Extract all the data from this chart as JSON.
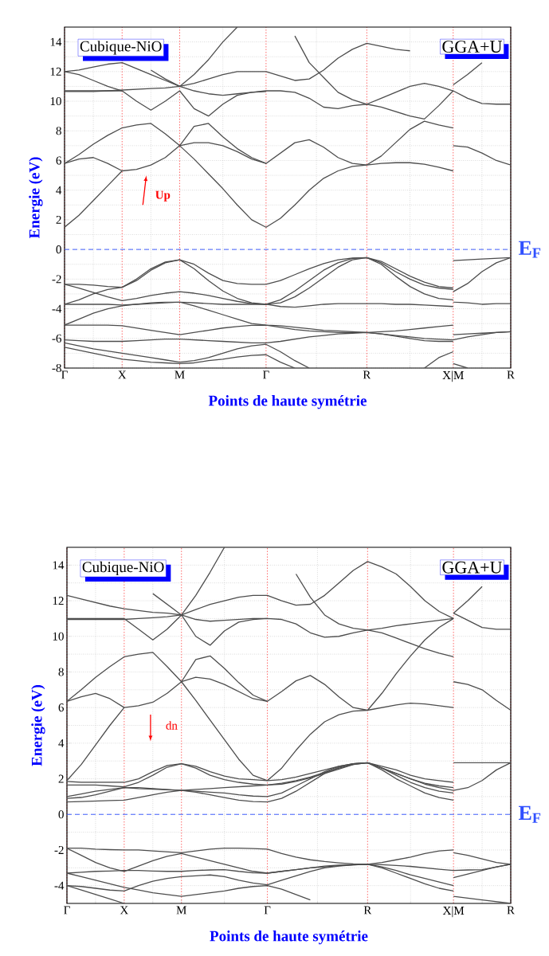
{
  "chart_data": [
    {
      "type": "line",
      "xlabel": "Points de haute symétrie",
      "ylabel": "Energie (eV)",
      "annotations": [
        "Cubique-NiO",
        "GGA+U",
        "Up"
      ],
      "grid": true,
      "ylim": [
        -8,
        15
      ],
      "categories": [
        "Γ",
        null,
        null,
        null,
        "X",
        null,
        null,
        null,
        "M",
        null,
        null,
        null,
        null,
        null,
        "Γ",
        null,
        null,
        null,
        null,
        null,
        null,
        "R",
        null,
        null,
        null,
        null,
        null,
        "X|M",
        null,
        null,
        null,
        "R"
      ],
      "yticks": [
        -8,
        -6,
        -4,
        -2,
        0,
        2,
        4,
        6,
        8,
        10,
        12,
        14
      ],
      "ref_lines": [
        {
          "axis": "y",
          "value": 0,
          "label": "E$_{F}$",
          "color": "#3050ff",
          "line_style": "dashed"
        }
      ],
      "series": [
        {
          "color": "#4d4d4d",
          "values": [
            1.5,
            2.3,
            3.3,
            4.3,
            5.3,
            5.4,
            5.7,
            6.2,
            7.0,
            6.1,
            5.1,
            4.1,
            3.0,
            2.0,
            1.5,
            2.1,
            3.0,
            4.0,
            4.8,
            5.3,
            5.6,
            5.7,
            5.8,
            5.85,
            5.85,
            5.75,
            5.55,
            5.3,
            null,
            null,
            null,
            null
          ]
        },
        {
          "color": "#4d4d4d",
          "values": [
            5.8,
            6.1,
            6.2,
            5.8,
            5.3,
            null,
            null,
            null,
            null,
            null,
            null,
            null,
            null,
            null,
            null,
            null,
            null,
            null,
            null,
            null,
            null,
            null,
            null,
            null,
            null,
            null,
            null,
            null,
            null,
            null,
            null,
            null
          ]
        },
        {
          "color": "#4d4d4d",
          "values": [
            5.8,
            6.4,
            7.1,
            7.7,
            8.2,
            8.4,
            8.5,
            7.8,
            7.0,
            7.2,
            7.2,
            7.0,
            6.6,
            6.1,
            5.8,
            6.5,
            7.2,
            7.4,
            6.9,
            6.2,
            5.8,
            5.7,
            6.3,
            7.2,
            8.1,
            8.65,
            8.4,
            8.2,
            null,
            null,
            null,
            null
          ]
        },
        {
          "color": "#4d4d4d",
          "values": [
            null,
            null,
            null,
            null,
            null,
            null,
            null,
            null,
            7.0,
            8.3,
            8.5,
            7.6,
            6.8,
            6.2,
            5.8,
            null,
            null,
            null,
            null,
            null,
            null,
            null,
            null,
            null,
            null,
            null,
            null,
            null,
            null,
            null,
            null,
            null
          ]
        },
        {
          "color": "#4d4d4d",
          "values": [
            10.7,
            10.7,
            10.7,
            10.7,
            10.7,
            10.0,
            9.4,
            10.0,
            10.7,
            9.5,
            9.0,
            9.8,
            10.4,
            10.6,
            10.7,
            10.7,
            10.6,
            10.2,
            9.6,
            9.5,
            9.7,
            9.8,
            9.6,
            9.3,
            9.0,
            8.8,
            9.7,
            10.7,
            10.2,
            9.85,
            9.8,
            9.8
          ]
        },
        {
          "color": "#4d4d4d",
          "values": [
            10.65,
            10.65,
            10.65,
            10.7,
            10.75,
            10.8,
            10.85,
            10.9,
            11.0,
            10.7,
            10.5,
            10.4,
            10.5,
            10.6,
            10.65,
            null,
            null,
            null,
            null,
            null,
            null,
            null,
            null,
            null,
            null,
            null,
            null,
            null,
            null,
            null,
            null,
            null
          ]
        },
        {
          "color": "#4d4d4d",
          "values": [
            12.0,
            11.8,
            11.4,
            11.0,
            10.7,
            null,
            null,
            null,
            null,
            null,
            null,
            null,
            null,
            null,
            null,
            null,
            null,
            null,
            null,
            null,
            null,
            null,
            null,
            null,
            null,
            null,
            null,
            null,
            null,
            null,
            null,
            null
          ]
        },
        {
          "color": "#4d4d4d",
          "values": [
            12.0,
            12.1,
            12.3,
            12.5,
            12.6,
            12.2,
            11.8,
            11.4,
            11.0,
            11.2,
            11.5,
            11.8,
            12.0,
            12.0,
            12.0,
            11.7,
            11.4,
            11.5,
            12.1,
            12.9,
            13.5,
            13.9,
            13.7,
            13.5,
            13.4,
            null,
            null,
            null,
            null,
            null,
            null,
            null
          ]
        },
        {
          "color": "#4d4d4d",
          "values": [
            null,
            null,
            null,
            null,
            null,
            null,
            null,
            null,
            11.0,
            11.8,
            12.8,
            14.0,
            15.0,
            null,
            null,
            null,
            null,
            null,
            null,
            null,
            null,
            null,
            null,
            null,
            null,
            null,
            null,
            null,
            null,
            null,
            null,
            null
          ]
        },
        {
          "color": "#4d4d4d",
          "values": [
            null,
            null,
            null,
            null,
            null,
            null,
            null,
            null,
            null,
            null,
            null,
            null,
            null,
            null,
            null,
            null,
            14.4,
            12.6,
            11.6,
            10.6,
            10.1,
            9.8,
            10.2,
            10.6,
            11.0,
            11.2,
            11.0,
            10.7,
            null,
            null,
            null,
            null
          ]
        },
        {
          "color": "#4d4d4d",
          "values": [
            null,
            null,
            null,
            null,
            null,
            null,
            12.1,
            11.5,
            11.0,
            null,
            null,
            null,
            null,
            null,
            null,
            null,
            null,
            null,
            null,
            null,
            null,
            null,
            null,
            null,
            null,
            null,
            null,
            null,
            null,
            null,
            null,
            null
          ]
        },
        {
          "color": "#4d4d4d",
          "values": [
            null,
            null,
            null,
            null,
            null,
            null,
            null,
            null,
            null,
            null,
            null,
            null,
            null,
            null,
            null,
            null,
            null,
            null,
            null,
            null,
            null,
            null,
            null,
            null,
            null,
            null,
            null,
            7.0,
            6.9,
            6.5,
            6.0,
            5.7
          ]
        },
        {
          "color": "#4d4d4d",
          "values": [
            null,
            null,
            null,
            null,
            null,
            null,
            null,
            null,
            null,
            null,
            null,
            null,
            null,
            null,
            null,
            null,
            null,
            null,
            null,
            null,
            null,
            null,
            null,
            null,
            null,
            null,
            null,
            11.1,
            11.8,
            12.6,
            null,
            null
          ]
        },
        {
          "color": "#4d4d4d",
          "values": [
            -2.35,
            -2.35,
            -2.4,
            -2.5,
            -2.55,
            -2.0,
            -1.3,
            -0.85,
            -0.7,
            -1.0,
            -1.6,
            -2.1,
            -2.3,
            -2.35,
            -2.35,
            -2.1,
            -1.7,
            -1.3,
            -0.95,
            -0.7,
            -0.58,
            -0.55,
            -0.8,
            -1.3,
            -1.8,
            -2.2,
            -2.5,
            -2.6,
            null,
            null,
            null,
            null
          ]
        },
        {
          "color": "#4d4d4d",
          "values": [
            null,
            null,
            null,
            null,
            null,
            null,
            null,
            null,
            null,
            null,
            null,
            null,
            null,
            null,
            null,
            null,
            null,
            null,
            null,
            null,
            null,
            null,
            null,
            null,
            null,
            null,
            null,
            -0.75,
            -0.7,
            -0.65,
            -0.6,
            -0.55
          ]
        },
        {
          "color": "#4d4d4d",
          "values": [
            -3.7,
            -3.4,
            -3.0,
            -2.7,
            -2.55,
            -2.1,
            -1.4,
            -0.9,
            -0.7,
            -1.3,
            -2.1,
            -2.8,
            -3.3,
            -3.6,
            -3.7,
            -3.4,
            -2.8,
            -2.1,
            -1.4,
            -0.9,
            -0.6,
            -0.55,
            -0.9,
            -1.5,
            -2.0,
            -2.4,
            -2.6,
            -2.7,
            null,
            null,
            null,
            null
          ]
        },
        {
          "color": "#4d4d4d",
          "values": [
            null,
            null,
            null,
            null,
            null,
            null,
            null,
            null,
            null,
            null,
            null,
            null,
            null,
            null,
            null,
            null,
            null,
            null,
            null,
            null,
            null,
            null,
            null,
            null,
            null,
            null,
            null,
            -2.85,
            -2.3,
            -1.5,
            -0.9,
            -0.55
          ]
        },
        {
          "color": "#4d4d4d",
          "values": [
            -3.7,
            -3.7,
            -3.7,
            -3.7,
            -3.75,
            -3.7,
            -3.65,
            -3.6,
            -3.55,
            -3.6,
            -3.65,
            -3.7,
            -3.7,
            -3.7,
            -3.7,
            -3.85,
            -3.9,
            -3.8,
            -3.7,
            -3.65,
            -3.65,
            -3.65,
            -3.65,
            -3.7,
            -3.7,
            -3.75,
            -3.8,
            -3.85,
            null,
            null,
            null,
            null
          ]
        },
        {
          "color": "#4d4d4d",
          "values": [
            null,
            null,
            null,
            null,
            null,
            null,
            null,
            null,
            null,
            null,
            null,
            null,
            null,
            null,
            null,
            null,
            null,
            null,
            null,
            null,
            null,
            null,
            null,
            null,
            null,
            null,
            null,
            -3.55,
            -3.6,
            -3.7,
            -3.65,
            -3.65
          ]
        },
        {
          "color": "#4d4d4d",
          "values": [
            -2.35,
            -2.6,
            -2.9,
            -3.2,
            -3.45,
            -3.3,
            -3.1,
            -2.95,
            -2.85,
            -2.95,
            -3.1,
            -3.3,
            -3.5,
            -3.65,
            -3.7,
            -3.6,
            -3.2,
            -2.6,
            -1.9,
            -1.2,
            -0.7,
            -0.55,
            -1.0,
            -1.8,
            -2.5,
            -3.0,
            -3.3,
            -3.4,
            null,
            null,
            null,
            null
          ]
        },
        {
          "color": "#4d4d4d",
          "values": [
            -5.1,
            -4.7,
            -4.3,
            -4.0,
            -3.8,
            -3.7,
            -3.6,
            -3.55,
            -3.55,
            -3.8,
            -4.1,
            -4.4,
            -4.7,
            -5.0,
            -5.1,
            -5.15,
            -5.25,
            -5.35,
            -5.45,
            -5.5,
            -5.55,
            -5.6,
            -5.55,
            -5.5,
            -5.4,
            -5.3,
            -5.2,
            -5.1,
            null,
            null,
            null,
            null
          ]
        },
        {
          "color": "#4d4d4d",
          "values": [
            null,
            null,
            null,
            null,
            null,
            null,
            null,
            null,
            null,
            null,
            null,
            null,
            null,
            null,
            null,
            null,
            null,
            null,
            null,
            null,
            null,
            null,
            null,
            null,
            null,
            null,
            null,
            -5.75,
            -5.7,
            -5.65,
            -5.6,
            -5.55
          ]
        },
        {
          "color": "#4d4d4d",
          "values": [
            -5.1,
            -5.1,
            -5.1,
            -5.1,
            -5.15,
            -5.3,
            -5.45,
            -5.6,
            -5.75,
            -5.6,
            -5.45,
            -5.3,
            -5.2,
            -5.12,
            -5.1,
            -5.25,
            -5.4,
            -5.5,
            -5.55,
            -5.6,
            -5.6,
            -5.6,
            -5.7,
            -5.8,
            -5.9,
            -6.0,
            -6.05,
            -6.1,
            -5.9,
            -5.75,
            -5.6,
            -5.55
          ]
        },
        {
          "color": "#4d4d4d",
          "values": [
            -6.1,
            -6.15,
            -6.2,
            -6.2,
            -6.2,
            -6.15,
            -6.1,
            -6.05,
            -6.05,
            -6.1,
            -6.15,
            -6.2,
            -6.25,
            -6.3,
            -6.3,
            -6.2,
            -6.05,
            -5.9,
            -5.8,
            -5.7,
            -5.65,
            -5.6,
            -5.7,
            -5.85,
            -6.0,
            -6.15,
            -6.2,
            -6.2,
            null,
            null,
            null,
            null
          ]
        },
        {
          "color": "#4d4d4d",
          "values": [
            -6.3,
            -6.5,
            -6.7,
            -6.85,
            -7.0,
            -7.15,
            -7.3,
            -7.45,
            -7.6,
            -7.5,
            -7.3,
            -7.0,
            -6.7,
            -6.5,
            -6.4,
            -6.9,
            -7.5,
            -8.0,
            null,
            null,
            null,
            null,
            null,
            null,
            null,
            null,
            null,
            null,
            null,
            null,
            null,
            null
          ]
        },
        {
          "color": "#4d4d4d",
          "values": [
            -6.6,
            -6.8,
            -7.0,
            -7.2,
            -7.4,
            -7.5,
            -7.6,
            -7.65,
            -7.7,
            -7.65,
            -7.5,
            -7.4,
            -7.25,
            -7.15,
            -7.1,
            -7.6,
            -8.0,
            null,
            null,
            null,
            null,
            null,
            null,
            null,
            null,
            null,
            null,
            null,
            null,
            null,
            null,
            null
          ]
        },
        {
          "color": "#4d4d4d",
          "values": [
            null,
            null,
            null,
            null,
            null,
            null,
            null,
            null,
            null,
            null,
            null,
            null,
            null,
            null,
            null,
            null,
            null,
            null,
            null,
            null,
            null,
            null,
            null,
            null,
            null,
            -8.0,
            -7.3,
            -6.9,
            null,
            null,
            null,
            null
          ]
        },
        {
          "color": "#4d4d4d",
          "values": [
            null,
            null,
            null,
            null,
            null,
            null,
            null,
            null,
            null,
            null,
            null,
            null,
            null,
            null,
            null,
            null,
            null,
            null,
            null,
            null,
            null,
            null,
            null,
            null,
            null,
            null,
            null,
            -7.7,
            -8.0,
            null,
            null,
            null
          ]
        }
      ]
    },
    {
      "type": "line",
      "xlabel": "Points de haute symétrie",
      "ylabel": "Energie (eV)",
      "annotations": [
        "Cubique-NiO",
        "GGA+U",
        "dn"
      ],
      "grid": true,
      "ylim": [
        -5,
        15
      ],
      "categories": [
        "Γ",
        null,
        null,
        null,
        "X",
        null,
        null,
        null,
        "M",
        null,
        null,
        null,
        null,
        null,
        "Γ",
        null,
        null,
        null,
        null,
        null,
        null,
        "R",
        null,
        null,
        null,
        null,
        null,
        "X|M",
        null,
        null,
        null,
        "R"
      ],
      "yticks": [
        -4,
        -2,
        0,
        2,
        4,
        6,
        8,
        10,
        12,
        14
      ],
      "ref_lines": [
        {
          "axis": "y",
          "value": 0,
          "label": "E$_{F}$",
          "color": "#3050ff",
          "line_style": "dashed"
        }
      ],
      "series": [
        {
          "color": "#4d4d4d",
          "values": [
            1.9,
            2.8,
            3.9,
            5.0,
            6.0,
            6.1,
            6.3,
            6.8,
            7.45,
            6.4,
            5.3,
            4.2,
            3.1,
            2.2,
            1.9,
            2.6,
            3.6,
            4.5,
            5.2,
            5.6,
            5.8,
            5.85,
            6.0,
            6.15,
            6.25,
            6.2,
            6.1,
            6.0,
            null,
            null,
            null,
            null
          ]
        },
        {
          "color": "#4d4d4d",
          "values": [
            6.35,
            6.6,
            6.8,
            6.5,
            6.0,
            null,
            null,
            null,
            null,
            null,
            null,
            null,
            null,
            null,
            null,
            null,
            null,
            null,
            null,
            null,
            null,
            null,
            null,
            null,
            null,
            null,
            null,
            null,
            null,
            null,
            null,
            null
          ]
        },
        {
          "color": "#4d4d4d",
          "values": [
            6.35,
            7.0,
            7.7,
            8.3,
            8.85,
            9.0,
            9.1,
            8.3,
            7.45,
            7.7,
            7.6,
            7.3,
            6.9,
            6.5,
            6.35,
            6.9,
            7.5,
            7.8,
            7.3,
            6.6,
            6.0,
            5.85,
            6.8,
            7.9,
            8.9,
            9.8,
            10.5,
            11.0,
            null,
            null,
            null,
            null
          ]
        },
        {
          "color": "#4d4d4d",
          "values": [
            null,
            null,
            null,
            null,
            null,
            null,
            null,
            null,
            7.45,
            8.7,
            8.9,
            8.2,
            7.4,
            6.7,
            6.35,
            null,
            null,
            null,
            null,
            null,
            null,
            null,
            null,
            null,
            null,
            null,
            null,
            null,
            null,
            null,
            null,
            null
          ]
        },
        {
          "color": "#4d4d4d",
          "values": [
            11.0,
            11.0,
            11.0,
            11.0,
            11.0,
            10.4,
            9.8,
            10.4,
            11.2,
            10.0,
            9.5,
            10.3,
            10.8,
            10.95,
            11.0,
            10.95,
            10.7,
            10.2,
            9.95,
            10.0,
            10.2,
            10.35,
            10.2,
            9.9,
            9.6,
            9.3,
            9.05,
            8.85,
            null,
            null,
            null,
            null
          ]
        },
        {
          "color": "#4d4d4d",
          "values": [
            12.3,
            12.1,
            11.9,
            11.7,
            11.55,
            11.45,
            11.35,
            11.3,
            11.2,
            11.5,
            11.8,
            12.0,
            12.2,
            12.3,
            12.3,
            12.0,
            11.75,
            11.8,
            12.3,
            13.0,
            13.7,
            14.2,
            13.9,
            13.5,
            12.8,
            12.0,
            11.4,
            11.0,
            null,
            null,
            null,
            null
          ]
        },
        {
          "color": "#4d4d4d",
          "values": [
            10.95,
            10.95,
            10.95,
            10.95,
            10.95,
            11.0,
            11.05,
            11.1,
            11.2,
            10.95,
            10.85,
            10.9,
            10.95,
            11.0,
            11.0,
            null,
            null,
            null,
            null,
            null,
            null,
            null,
            null,
            null,
            null,
            null,
            null,
            null,
            null,
            null,
            null,
            null
          ]
        },
        {
          "color": "#4d4d4d",
          "values": [
            null,
            null,
            null,
            null,
            null,
            null,
            null,
            null,
            null,
            null,
            null,
            null,
            null,
            null,
            null,
            null,
            13.5,
            12.2,
            11.2,
            10.7,
            10.45,
            10.35,
            10.45,
            10.6,
            10.7,
            10.8,
            10.9,
            11.0,
            null,
            null,
            null,
            null
          ]
        },
        {
          "color": "#4d4d4d",
          "values": [
            null,
            null,
            null,
            null,
            null,
            null,
            null,
            null,
            11.2,
            12.3,
            13.6,
            15.0,
            null,
            null,
            null,
            null,
            null,
            null,
            null,
            null,
            null,
            null,
            null,
            null,
            null,
            null,
            null,
            null,
            null,
            null,
            null,
            null
          ]
        },
        {
          "color": "#4d4d4d",
          "values": [
            null,
            null,
            null,
            null,
            null,
            null,
            12.4,
            11.8,
            11.2,
            null,
            null,
            null,
            null,
            null,
            null,
            null,
            null,
            null,
            null,
            null,
            null,
            null,
            null,
            null,
            null,
            null,
            null,
            null,
            null,
            null,
            null,
            null
          ]
        },
        {
          "color": "#4d4d4d",
          "values": [
            null,
            null,
            null,
            null,
            null,
            null,
            null,
            null,
            null,
            null,
            null,
            null,
            null,
            null,
            null,
            null,
            null,
            null,
            null,
            null,
            null,
            null,
            null,
            null,
            null,
            null,
            null,
            7.45,
            7.3,
            7.0,
            6.4,
            5.85
          ]
        },
        {
          "color": "#4d4d4d",
          "values": [
            null,
            null,
            null,
            null,
            null,
            null,
            null,
            null,
            null,
            null,
            null,
            null,
            null,
            null,
            null,
            null,
            null,
            null,
            null,
            null,
            null,
            null,
            null,
            null,
            null,
            null,
            null,
            11.3,
            10.9,
            10.5,
            10.4,
            10.4
          ]
        },
        {
          "color": "#4d4d4d",
          "values": [
            null,
            null,
            null,
            null,
            null,
            null,
            null,
            null,
            null,
            null,
            null,
            null,
            null,
            null,
            null,
            null,
            null,
            null,
            null,
            null,
            null,
            null,
            null,
            null,
            null,
            null,
            null,
            11.3,
            12.0,
            12.8,
            null,
            null
          ]
        },
        {
          "color": "#4d4d4d",
          "values": [
            1.85,
            1.8,
            1.8,
            1.8,
            1.8,
            2.0,
            2.4,
            2.75,
            2.85,
            2.7,
            2.4,
            2.15,
            2.0,
            1.95,
            1.9,
            1.95,
            2.1,
            2.3,
            2.5,
            2.7,
            2.85,
            2.9,
            2.7,
            2.5,
            2.2,
            2.0,
            1.9,
            1.8,
            null,
            null,
            null,
            null
          ]
        },
        {
          "color": "#4d4d4d",
          "values": [
            1.65,
            1.65,
            1.65,
            1.6,
            1.55,
            1.8,
            2.2,
            2.65,
            2.85,
            2.6,
            2.2,
            1.95,
            1.8,
            1.7,
            1.65,
            1.7,
            1.85,
            2.05,
            2.3,
            2.55,
            2.8,
            2.9,
            2.6,
            2.3,
            2.0,
            1.75,
            1.6,
            1.5,
            null,
            null,
            null,
            null
          ]
        },
        {
          "color": "#4d4d4d",
          "values": [
            1.0,
            1.15,
            1.3,
            1.4,
            1.5,
            1.5,
            1.45,
            1.4,
            1.35,
            1.4,
            1.45,
            1.5,
            1.55,
            1.6,
            1.65,
            1.75,
            1.9,
            2.1,
            2.35,
            2.6,
            2.8,
            2.9,
            2.6,
            2.3,
            2.0,
            1.7,
            1.5,
            1.35,
            1.5,
            1.9,
            2.5,
            2.9
          ]
        },
        {
          "color": "#4d4d4d",
          "values": [
            0.7,
            0.72,
            0.75,
            0.78,
            0.8,
            0.95,
            1.1,
            1.25,
            1.35,
            1.25,
            1.1,
            0.95,
            0.8,
            0.72,
            0.7,
            0.9,
            1.3,
            1.8,
            2.3,
            2.65,
            2.85,
            2.9,
            2.5,
            2.0,
            1.6,
            1.2,
            0.95,
            0.8,
            null,
            null,
            null,
            null
          ]
        },
        {
          "color": "#4d4d4d",
          "values": [
            0.9,
            0.95,
            1.1,
            1.3,
            1.5,
            1.45,
            1.42,
            1.38,
            1.35,
            1.3,
            1.25,
            1.2,
            1.1,
            1.03,
            1.0,
            1.2,
            1.6,
            2.0,
            2.4,
            2.7,
            2.85,
            2.9,
            2.6,
            2.2,
            1.8,
            1.5,
            1.3,
            1.2,
            null,
            null,
            null,
            null
          ]
        },
        {
          "color": "#4d4d4d",
          "values": [
            null,
            null,
            null,
            null,
            null,
            null,
            null,
            null,
            null,
            null,
            null,
            null,
            null,
            null,
            null,
            null,
            null,
            null,
            null,
            null,
            null,
            null,
            null,
            null,
            null,
            null,
            null,
            2.9,
            2.9,
            2.9,
            2.9,
            2.9
          ]
        },
        {
          "color": "#4d4d4d",
          "values": [
            -1.9,
            -1.9,
            -1.95,
            -1.98,
            -2.0,
            -2.0,
            -2.05,
            -2.1,
            -2.15,
            -2.05,
            -1.95,
            -1.9,
            -1.9,
            -1.92,
            -1.95,
            -2.2,
            -2.4,
            -2.55,
            -2.65,
            -2.72,
            -2.78,
            -2.8,
            -2.7,
            -2.55,
            -2.4,
            -2.2,
            -2.05,
            -2.0,
            null,
            null,
            null,
            null
          ]
        },
        {
          "color": "#4d4d4d",
          "values": [
            null,
            null,
            null,
            null,
            null,
            null,
            null,
            null,
            null,
            null,
            null,
            null,
            null,
            null,
            null,
            null,
            null,
            null,
            null,
            null,
            null,
            null,
            null,
            null,
            null,
            null,
            null,
            -2.15,
            -2.3,
            -2.5,
            -2.7,
            -2.8
          ]
        },
        {
          "color": "#4d4d4d",
          "values": [
            -3.3,
            -3.25,
            -3.2,
            -3.18,
            -3.15,
            -3.15,
            -3.18,
            -3.2,
            -3.2,
            -3.15,
            -3.12,
            -3.1,
            -3.2,
            -3.28,
            -3.3,
            -3.2,
            -3.1,
            -3.0,
            -2.95,
            -2.88,
            -2.83,
            -2.8,
            -2.82,
            -2.87,
            -2.92,
            -3.0,
            -3.08,
            -3.15,
            -3.12,
            -3.1,
            -2.95,
            -2.8
          ]
        },
        {
          "color": "#4d4d4d",
          "values": [
            -4.0,
            -4.05,
            -4.15,
            -4.25,
            -4.3,
            -4.0,
            -3.75,
            -3.6,
            -3.5,
            -3.45,
            -3.4,
            -3.5,
            -3.7,
            -3.85,
            -3.95,
            -3.7,
            -3.45,
            -3.2,
            -3.0,
            -2.9,
            -2.83,
            -2.8,
            -3.0,
            -3.3,
            -3.6,
            -3.9,
            -4.15,
            -4.3,
            null,
            null,
            null,
            null
          ]
        },
        {
          "color": "#4d4d4d",
          "values": [
            null,
            null,
            null,
            null,
            null,
            null,
            null,
            null,
            null,
            null,
            null,
            null,
            null,
            null,
            null,
            null,
            null,
            null,
            null,
            null,
            null,
            null,
            null,
            null,
            null,
            null,
            null,
            -3.55,
            -3.35,
            -3.15,
            -2.95,
            -2.8
          ]
        },
        {
          "color": "#4d4d4d",
          "values": [
            -1.9,
            -2.3,
            -2.7,
            -3.0,
            -3.2,
            -2.9,
            -2.6,
            -2.35,
            -2.2,
            -2.4,
            -2.6,
            -2.8,
            -3.0,
            -3.2,
            -3.3,
            -3.2,
            -3.1,
            -3.0,
            -2.9,
            -2.85,
            -2.82,
            -2.8,
            -2.95,
            -3.15,
            -3.4,
            -3.6,
            -3.8,
            -4.0,
            null,
            null,
            null,
            null
          ]
        },
        {
          "color": "#4d4d4d",
          "values": [
            -3.3,
            -3.5,
            -3.7,
            -3.9,
            -4.1,
            -4.25,
            -4.4,
            -4.5,
            -4.6,
            -4.5,
            -4.4,
            -4.3,
            -4.15,
            -4.05,
            -4.0,
            -4.2,
            -4.5,
            -4.8,
            null,
            null,
            null,
            null,
            null,
            null,
            null,
            null,
            null,
            null,
            null,
            null,
            null,
            null
          ]
        },
        {
          "color": "#4d4d4d",
          "values": [
            -4.0,
            -4.25,
            -4.5,
            -4.75,
            -5.0,
            null,
            null,
            null,
            null,
            null,
            null,
            null,
            null,
            null,
            null,
            null,
            null,
            null,
            null,
            null,
            null,
            null,
            null,
            null,
            null,
            null,
            null,
            null,
            null,
            null,
            null,
            null
          ]
        },
        {
          "color": "#4d4d4d",
          "values": [
            null,
            null,
            null,
            null,
            null,
            null,
            null,
            null,
            null,
            null,
            null,
            null,
            null,
            null,
            null,
            null,
            null,
            null,
            null,
            null,
            null,
            null,
            null,
            null,
            null,
            null,
            null,
            -4.6,
            -4.7,
            -4.8,
            -4.9,
            -5.0
          ]
        }
      ]
    }
  ]
}
